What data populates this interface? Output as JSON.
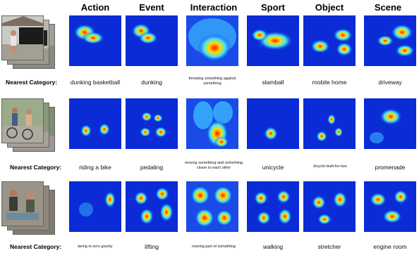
{
  "columns": [
    "Action",
    "Event",
    "Interaction",
    "Sport",
    "Object",
    "Scene"
  ],
  "row_label": "Nearest Category:",
  "rows": [
    {
      "thumbnail": "video-frames-basketball",
      "categories": [
        "dunking basketball",
        "dunking",
        "throwing something against something",
        "slamball",
        "mobile home",
        "driveway"
      ],
      "small": [
        false,
        false,
        true,
        false,
        false,
        false
      ]
    },
    {
      "thumbnail": "video-frames-bicycle",
      "categories": [
        "riding a bike",
        "pedaling",
        "moving something and something closer to each other",
        "unicycle",
        "bicycle-built-for-two",
        "promenade"
      ],
      "small": [
        false,
        false,
        true,
        false,
        true,
        false
      ]
    },
    {
      "thumbnail": "video-frames-people",
      "categories": [
        "being in zero gravity",
        "lifting",
        "moving part of something",
        "walking",
        "stretcher",
        "engine room"
      ],
      "small": [
        true,
        false,
        true,
        false,
        false,
        false
      ]
    }
  ],
  "colors": {
    "cold": "#0a2bd6",
    "hot": "#ff1a00"
  }
}
